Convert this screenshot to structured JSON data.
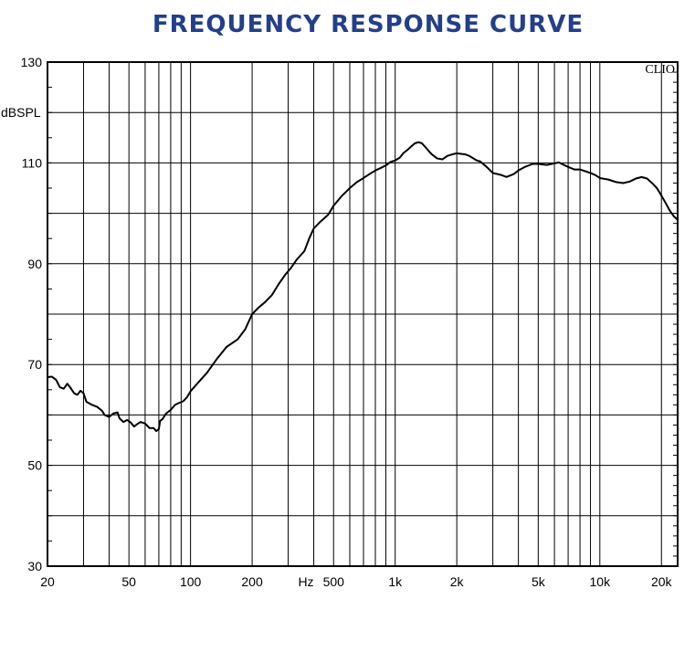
{
  "chart_data": {
    "type": "line",
    "title": "FREQUENCY RESPONSE CURVE",
    "title_color": "#233f8c",
    "ylabel": "dBSPL",
    "xlabel": "Hz",
    "watermark": "CLIO",
    "x_scale": "log",
    "xlim": [
      20,
      24000
    ],
    "ylim": [
      30,
      130
    ],
    "grid": true,
    "x_ticks": [
      {
        "value": 20,
        "label": "20"
      },
      {
        "value": 50,
        "label": "50"
      },
      {
        "value": 100,
        "label": "100"
      },
      {
        "value": 200,
        "label": "200"
      },
      {
        "value": 500,
        "label": "500"
      },
      {
        "value": 1000,
        "label": "1k"
      },
      {
        "value": 2000,
        "label": "2k"
      },
      {
        "value": 5000,
        "label": "5k"
      },
      {
        "value": 10000,
        "label": "10k"
      },
      {
        "value": 20000,
        "label": "20k"
      }
    ],
    "y_ticks": [
      {
        "value": 130,
        "label": "130"
      },
      {
        "value": 110,
        "label": "110"
      },
      {
        "value": 90,
        "label": "90"
      },
      {
        "value": 70,
        "label": "70"
      },
      {
        "value": 50,
        "label": "50"
      },
      {
        "value": 30,
        "label": "30"
      }
    ],
    "series": [
      {
        "color": "#000000",
        "points": [
          [
            20,
            67.5
          ],
          [
            21,
            67.6
          ],
          [
            22,
            67.0
          ],
          [
            23,
            65.5
          ],
          [
            24,
            65.2
          ],
          [
            25,
            66.2
          ],
          [
            26,
            65.3
          ],
          [
            27,
            64.3
          ],
          [
            28,
            64.0
          ],
          [
            29,
            64.8
          ],
          [
            30,
            64.3
          ],
          [
            31,
            62.6
          ],
          [
            33,
            62.0
          ],
          [
            35,
            61.6
          ],
          [
            37,
            60.8
          ],
          [
            38,
            60.0
          ],
          [
            40,
            59.6
          ],
          [
            42,
            60.3
          ],
          [
            44,
            60.5
          ],
          [
            45,
            59.3
          ],
          [
            47,
            58.6
          ],
          [
            49,
            59.0
          ],
          [
            51,
            58.5
          ],
          [
            53,
            57.7
          ],
          [
            55,
            58.2
          ],
          [
            57,
            58.6
          ],
          [
            60,
            58.3
          ],
          [
            63,
            57.4
          ],
          [
            66,
            57.4
          ],
          [
            68,
            56.8
          ],
          [
            70,
            57.2
          ],
          [
            71,
            58.8
          ],
          [
            73,
            59.2
          ],
          [
            76,
            60.3
          ],
          [
            80,
            61.0
          ],
          [
            84,
            62.0
          ],
          [
            88,
            62.4
          ],
          [
            92,
            62.7
          ],
          [
            96,
            63.5
          ],
          [
            100,
            64.7
          ],
          [
            110,
            66.6
          ],
          [
            120,
            68.3
          ],
          [
            135,
            71.2
          ],
          [
            150,
            73.5
          ],
          [
            170,
            75.0
          ],
          [
            185,
            77.0
          ],
          [
            200,
            80.0
          ],
          [
            215,
            81.3
          ],
          [
            230,
            82.3
          ],
          [
            250,
            83.8
          ],
          [
            270,
            86.0
          ],
          [
            290,
            87.8
          ],
          [
            310,
            89.2
          ],
          [
            330,
            90.8
          ],
          [
            360,
            92.5
          ],
          [
            380,
            95.0
          ],
          [
            400,
            97.0
          ],
          [
            430,
            98.3
          ],
          [
            470,
            99.7
          ],
          [
            500,
            101.5
          ],
          [
            550,
            103.5
          ],
          [
            600,
            105.0
          ],
          [
            650,
            106.2
          ],
          [
            700,
            107.0
          ],
          [
            750,
            107.8
          ],
          [
            800,
            108.5
          ],
          [
            850,
            109.0
          ],
          [
            900,
            109.5
          ],
          [
            950,
            110.2
          ],
          [
            1000,
            110.5
          ],
          [
            1050,
            111.0
          ],
          [
            1100,
            112.0
          ],
          [
            1150,
            112.6
          ],
          [
            1200,
            113.3
          ],
          [
            1250,
            113.9
          ],
          [
            1300,
            114.1
          ],
          [
            1350,
            113.9
          ],
          [
            1400,
            113.2
          ],
          [
            1500,
            111.8
          ],
          [
            1600,
            110.9
          ],
          [
            1700,
            110.7
          ],
          [
            1800,
            111.4
          ],
          [
            1900,
            111.7
          ],
          [
            2000,
            111.9
          ],
          [
            2100,
            111.8
          ],
          [
            2200,
            111.7
          ],
          [
            2300,
            111.4
          ],
          [
            2500,
            110.5
          ],
          [
            2600,
            110.3
          ],
          [
            2800,
            109.2
          ],
          [
            3000,
            108.0
          ],
          [
            3300,
            107.6
          ],
          [
            3500,
            107.2
          ],
          [
            3800,
            107.8
          ],
          [
            4000,
            108.5
          ],
          [
            4300,
            109.2
          ],
          [
            4700,
            109.8
          ],
          [
            5000,
            109.8
          ],
          [
            5500,
            109.6
          ],
          [
            6000,
            109.9
          ],
          [
            6300,
            110.1
          ],
          [
            7000,
            109.2
          ],
          [
            7500,
            108.7
          ],
          [
            8000,
            108.7
          ],
          [
            9000,
            108.0
          ],
          [
            9500,
            107.6
          ],
          [
            10000,
            107.0
          ],
          [
            11000,
            106.7
          ],
          [
            12000,
            106.2
          ],
          [
            13000,
            106.0
          ],
          [
            14000,
            106.3
          ],
          [
            15000,
            106.9
          ],
          [
            16000,
            107.2
          ],
          [
            17000,
            106.9
          ],
          [
            18000,
            106.0
          ],
          [
            19000,
            105.0
          ],
          [
            20000,
            103.5
          ],
          [
            21000,
            102.0
          ],
          [
            22000,
            100.5
          ],
          [
            23000,
            99.4
          ],
          [
            24000,
            98.7
          ]
        ]
      }
    ]
  }
}
